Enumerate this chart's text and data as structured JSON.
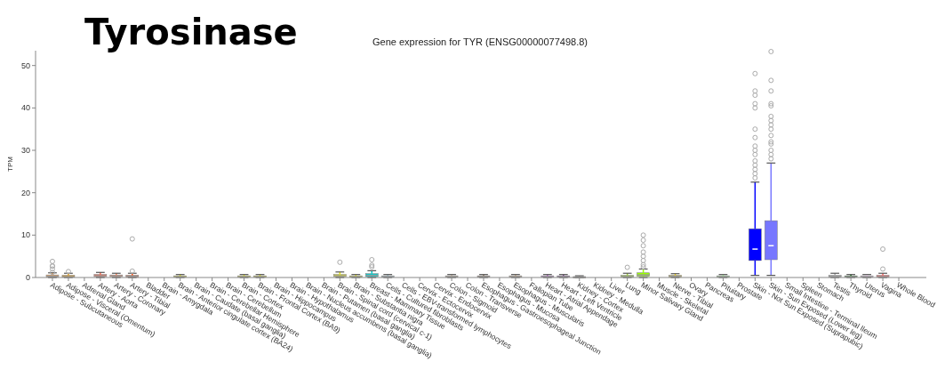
{
  "chart_data": {
    "type": "box",
    "title": "Tyrosinase",
    "subtitle": "Gene expression for TYR (ENSG00000077498.8)",
    "ylabel": "TPM",
    "categories": [
      "Adipose - Subcutaneous",
      "Adipose - Visceral (Omentum)",
      "Adrenal Gland",
      "Artery - Aorta",
      "Artery - Coronary",
      "Artery - Tibial",
      "Bladder",
      "Brain - Amygdala",
      "Brain - Anterior cingulate cortex (BA24)",
      "Brain - Caudate (basal ganglia)",
      "Brain - Cerebellar Hemisphere",
      "Brain - Cerebellum",
      "Brain - Cortex",
      "Brain - Frontal Cortex (BA9)",
      "Brain - Hippocampus",
      "Brain - Hypothalamus",
      "Brain - Nucleus accumbens (basal ganglia)",
      "Brain - Putamen (basal ganglia)",
      "Brain - Spinal cord (cervical c-1)",
      "Brain - Substantia nigra",
      "Breast - Mammary Tissue",
      "Cells - Cultured fibroblasts",
      "Cells - EBV-transformed lymphocytes",
      "Cervix - Ectocervix",
      "Cervix - Endocervix",
      "Colon - Sigmoid",
      "Colon - Transverse",
      "Esophagus - Gastroesophageal Junction",
      "Esophagus - Mucosa",
      "Esophagus - Muscularis",
      "Fallopian Tube",
      "Heart - Atrial Appendage",
      "Heart - Left Ventricle",
      "Kidney - Cortex",
      "Kidney - Medulla",
      "Liver",
      "Lung",
      "Minor Salivary Gland",
      "Muscle - Skeletal",
      "Nerve - Tibial",
      "Ovary",
      "Pancreas",
      "Pituitary",
      "Prostate",
      "Skin - Not Sun Exposed (Suprapubic)",
      "Skin - Sun Exposed (Lower leg)",
      "Small Intestine - Terminal Ileum",
      "Spleen",
      "Stomach",
      "Testis",
      "Thyroid",
      "Uterus",
      "Vagina",
      "Whole Blood"
    ],
    "colors": [
      "#ffa54f",
      "#ee9a00",
      null,
      "#ff6347",
      "#ff7f50",
      "#ff4500",
      null,
      null,
      "#eeee00",
      null,
      null,
      null,
      "#eeee00",
      "#eeee00",
      null,
      null,
      null,
      null,
      "#eeee00",
      "#eeee00",
      "#00cdcd",
      "#9ac0cd",
      null,
      null,
      null,
      "#cdb79e",
      null,
      "#8b7355",
      null,
      "#cdaa7d",
      null,
      "#b452cd",
      "#7a378b",
      "#cdb79e",
      null,
      null,
      "#9acd32",
      "#99ff00",
      null,
      "#ffd700",
      null,
      null,
      "#aaff99",
      null,
      "#0000ff",
      "#7777ff",
      null,
      null,
      null,
      "#a6a6a6",
      "#006400",
      "#ffd4ff",
      "#ff5a5a",
      null
    ],
    "boxes": [
      {
        "low": 0,
        "q1": 0.1,
        "median": 0.3,
        "q3": 0.6,
        "high": 1.1,
        "outliers": [
          1.2,
          2.0,
          2.7,
          2.7,
          3.8
        ]
      },
      {
        "low": 0,
        "q1": 0.05,
        "median": 0.2,
        "q3": 0.5,
        "high": 1.0,
        "outliers": [
          1.4
        ]
      },
      null,
      {
        "low": 0,
        "q1": 0.2,
        "median": 0.4,
        "q3": 0.7,
        "high": 1.2
      },
      {
        "low": 0,
        "q1": 0.2,
        "median": 0.4,
        "q3": 0.6,
        "high": 1.0
      },
      {
        "low": 0,
        "q1": 0.1,
        "median": 0.3,
        "q3": 0.5,
        "high": 1.0,
        "outliers": [
          1.5,
          9.1
        ]
      },
      null,
      null,
      {
        "low": 0,
        "q1": 0.1,
        "median": 0.2,
        "q3": 0.4,
        "high": 0.7
      },
      null,
      null,
      null,
      {
        "low": 0,
        "q1": 0.1,
        "median": 0.2,
        "q3": 0.4,
        "high": 0.7
      },
      {
        "low": 0,
        "q1": 0.1,
        "median": 0.2,
        "q3": 0.4,
        "high": 0.7
      },
      null,
      null,
      null,
      null,
      {
        "low": 0,
        "q1": 0.2,
        "median": 0.4,
        "q3": 0.7,
        "high": 1.3,
        "outliers": [
          3.6
        ]
      },
      {
        "low": 0,
        "q1": 0.1,
        "median": 0.2,
        "q3": 0.4,
        "high": 0.7
      },
      {
        "low": 0,
        "q1": 0.2,
        "median": 0.5,
        "q3": 0.9,
        "high": 1.6,
        "outliers": [
          2.5,
          2.9,
          4.2
        ]
      },
      {
        "low": 0,
        "q1": 0.1,
        "median": 0.2,
        "q3": 0.4,
        "high": 0.7
      },
      null,
      null,
      null,
      {
        "low": 0,
        "q1": 0.1,
        "median": 0.2,
        "q3": 0.4,
        "high": 0.7
      },
      null,
      {
        "low": 0,
        "q1": 0.1,
        "median": 0.2,
        "q3": 0.4,
        "high": 0.7
      },
      null,
      {
        "low": 0,
        "q1": 0.1,
        "median": 0.2,
        "q3": 0.4,
        "high": 0.7
      },
      null,
      {
        "low": 0,
        "q1": 0.1,
        "median": 0.2,
        "q3": 0.4,
        "high": 0.7
      },
      {
        "low": 0,
        "q1": 0.1,
        "median": 0.2,
        "q3": 0.4,
        "high": 0.7
      },
      {
        "low": 0,
        "q1": 0.05,
        "median": 0.1,
        "q3": 0.2,
        "high": 0.4
      },
      null,
      null,
      {
        "low": 0,
        "q1": 0.1,
        "median": 0.2,
        "q3": 0.5,
        "high": 1.0,
        "outliers": [
          2.4
        ]
      },
      {
        "low": 0,
        "q1": 0.3,
        "median": 0.6,
        "q3": 1.1,
        "high": 2.0,
        "outliers": [
          2.5,
          3.0,
          4.0,
          5.0,
          6.0,
          7.5,
          8.8,
          10.0
        ]
      },
      null,
      {
        "low": 0,
        "q1": 0.1,
        "median": 0.3,
        "q3": 0.5,
        "high": 0.9
      },
      null,
      null,
      {
        "low": 0,
        "q1": 0.1,
        "median": 0.2,
        "q3": 0.4,
        "high": 0.7
      },
      null,
      {
        "low": 0.5,
        "q1": 4.0,
        "median": 6.7,
        "q3": 11.5,
        "high": 22.5,
        "outliers": [
          23.5,
          24.5,
          25.5,
          26.5,
          27.5,
          29,
          30,
          31,
          33,
          35,
          40,
          41,
          43,
          44,
          48.1
        ]
      },
      {
        "low": 0.5,
        "q1": 4.2,
        "median": 7.5,
        "q3": 13.4,
        "high": 27,
        "outliers": [
          28,
          29,
          30,
          31.5,
          32,
          33.5,
          35,
          36,
          37,
          38,
          40.5,
          41,
          44,
          46.5,
          53.3
        ]
      },
      null,
      null,
      null,
      {
        "low": 0,
        "q1": 0.1,
        "median": 0.2,
        "q3": 0.5,
        "high": 1.0
      },
      {
        "low": 0,
        "q1": 0.1,
        "median": 0.2,
        "q3": 0.4,
        "high": 0.7
      },
      {
        "low": 0,
        "q1": 0.1,
        "median": 0.2,
        "q3": 0.4,
        "high": 0.7
      },
      {
        "low": 0,
        "q1": 0.1,
        "median": 0.2,
        "q3": 0.5,
        "high": 1.0,
        "outliers": [
          2.0,
          6.7
        ]
      },
      null
    ],
    "ylim": [
      0,
      53.5
    ],
    "yticks": [
      0,
      10,
      20,
      30,
      40,
      50
    ],
    "grid": false
  }
}
